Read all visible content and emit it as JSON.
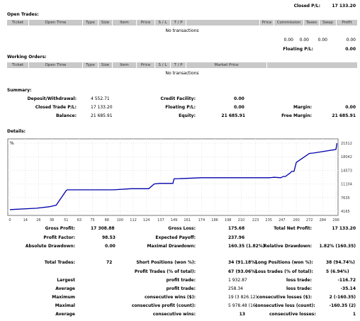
{
  "top": {
    "closed_pl_label": "Closed P/L:",
    "closed_pl_value": "17 133.20"
  },
  "open_trades": {
    "title": "Open Trades:",
    "columns": [
      "Ticket",
      "Open Time",
      "Type",
      "Size",
      "Item",
      "Price",
      "S / L",
      "T / P",
      "Price",
      "Commission",
      "Taxes",
      "Swap",
      "Profit"
    ],
    "empty": "No transactions",
    "totals": [
      "0.00",
      "0.00",
      "0.00",
      "0.00"
    ],
    "floating_label": "Floating P/L:",
    "floating_value": "0.00"
  },
  "working_orders": {
    "title": "Working Orders:",
    "columns": [
      "Ticket",
      "Open Time",
      "Type",
      "Size",
      "Item",
      "Price",
      "S / L",
      "T / P",
      "Market Price"
    ],
    "empty": "No transactions"
  },
  "summary": {
    "title": "Summary:",
    "deposit_label": "Deposit/Withdrawal:",
    "deposit_value": "4 552.71",
    "closed_label": "Closed Trade P/L:",
    "closed_value": "17 133.20",
    "balance_label": "Balance:",
    "balance_value": "21 685.91",
    "credit_label": "Credit Facility:",
    "credit_value": "0.00",
    "floating_label": "Floating P/L:",
    "floating_value": "0.00",
    "equity_label": "Equity:",
    "equity_value": "21 685.91",
    "margin_label": "Margin:",
    "margin_value": "0.00",
    "free_margin_label": "Free Margin:",
    "free_margin_value": "21 685.91"
  },
  "details": {
    "title": "Details:"
  },
  "chart_data": {
    "type": "line",
    "corner_label": "%",
    "x_ticks": [
      "0",
      "14",
      "26",
      "38",
      "51",
      "63",
      "75",
      "88",
      "100",
      "112",
      "124",
      "137",
      "149",
      "161",
      "174",
      "186",
      "198",
      "210",
      "223",
      "235",
      "247",
      "260",
      "272",
      "284",
      "296"
    ],
    "y_ticks": [
      "21512",
      "18042",
      "14573",
      "11104",
      "7635",
      "4165"
    ],
    "ylim": [
      4165,
      21512
    ],
    "xlim": [
      0,
      296
    ],
    "line_color": "#0000aa",
    "x": [
      0,
      24,
      36,
      42,
      51,
      52,
      94,
      110,
      126,
      131,
      136,
      148,
      149,
      174,
      186,
      236,
      240,
      246,
      248,
      250,
      254,
      256,
      258,
      260,
      272,
      276,
      296,
      298
    ],
    "y": [
      4560,
      4900,
      5300,
      5700,
      9380,
      9600,
      9600,
      9900,
      9900,
      11100,
      11250,
      11250,
      12400,
      12700,
      12700,
      12700,
      12800,
      12700,
      13000,
      13000,
      13800,
      14300,
      14300,
      16600,
      18900,
      19000,
      19900,
      21512
    ]
  },
  "stats": {
    "gross_profit_label": "Gross Profit:",
    "gross_profit_value": "17 308.88",
    "gross_loss_label": "Gross Loss:",
    "gross_loss_value": "175.68",
    "total_net_label": "Total Net Profit:",
    "total_net_value": "17 133.20",
    "profit_factor_label": "Profit Factor:",
    "profit_factor_value": "98.53",
    "expected_payoff_label": "Expected Payoff:",
    "expected_payoff_value": "237.96",
    "abs_dd_label": "Absolute Drawdown:",
    "abs_dd_value": "0.00",
    "max_dd_label": "Maximal Drawdown:",
    "max_dd_value": "160.35 (1.82%)",
    "rel_dd_label": "Relative Drawdown:",
    "rel_dd_value": "1.82% (160.35)",
    "total_trades_label": "Total Trades:",
    "total_trades_value": "72",
    "short_label": "Short Positions (won %):",
    "short_value": "34 (91.18%)",
    "long_label": "Long Positions (won %):",
    "long_value": "38 (94.74%)",
    "profit_trades_label": "Profit Trades (% of total):",
    "profit_trades_value": "67 (93.06%)",
    "loss_trades_label": "Loss trades (% of total):",
    "loss_trades_value": "5 (6.94%)",
    "largest_label": "Largest",
    "largest_profit_label": "profit trade:",
    "largest_profit_value": "1 932.87",
    "largest_loss_label": "loss trade:",
    "largest_loss_value": "-116.72",
    "average_label": "Average",
    "avg_profit_label": "profit trade:",
    "avg_profit_value": "258.34",
    "avg_loss_label": "loss trade:",
    "avg_loss_value": "-35.14",
    "maximum_label": "Maximum",
    "max_wins_label": "consecutive wins ($):",
    "max_wins_value": "19 (3 826.12)",
    "max_losses_label": "consecutive losses ($):",
    "max_losses_value": "2 (-160.35)",
    "maximal_label": "Maximal",
    "max_profit_label": "consecutive profit (count):",
    "max_profit_value": "5 978.48 (16)",
    "max_loss_label": "consecutive loss (count):",
    "max_loss_value": "-160.35 (2)",
    "average2_label": "Average",
    "avg_wins_label": "consecutive wins:",
    "avg_wins_value": "13",
    "avg_losses_label": "consecutive losses:",
    "avg_losses_value": "1"
  }
}
